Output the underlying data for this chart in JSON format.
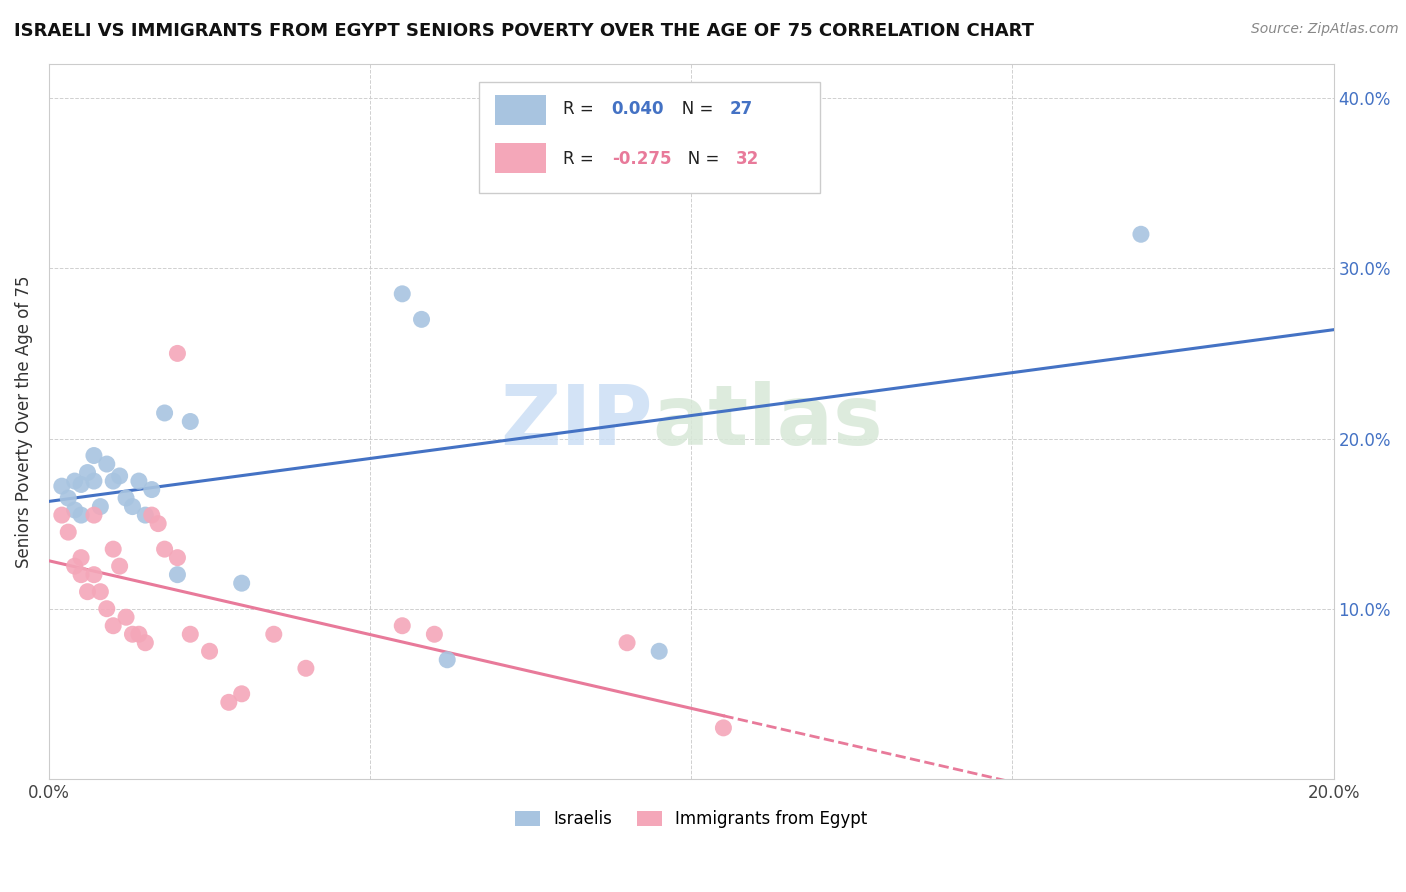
{
  "title": "ISRAELI VS IMMIGRANTS FROM EGYPT SENIORS POVERTY OVER THE AGE OF 75 CORRELATION CHART",
  "source": "Source: ZipAtlas.com",
  "ylabel": "Seniors Poverty Over the Age of 75",
  "xlim": [
    0.0,
    0.2
  ],
  "ylim": [
    0.0,
    0.42
  ],
  "yticks": [
    0.0,
    0.1,
    0.2,
    0.3,
    0.4
  ],
  "xticks": [
    0.0,
    0.05,
    0.1,
    0.15,
    0.2
  ],
  "xtick_labels_show": [
    "0.0%",
    "",
    "",
    "",
    "20.0%"
  ],
  "ytick_labels": [
    "",
    "10.0%",
    "20.0%",
    "30.0%",
    "40.0%"
  ],
  "israelis_color": "#a8c4e0",
  "egypt_color": "#f4a7b9",
  "israelis_line_color": "#4472c4",
  "egypt_line_color": "#e87a9a",
  "legend_label_1": "Israelis",
  "legend_label_2": "Immigrants from Egypt",
  "R1": 0.04,
  "N1": 27,
  "R2": -0.275,
  "N2": 32,
  "israelis_x": [
    0.002,
    0.003,
    0.004,
    0.004,
    0.005,
    0.005,
    0.006,
    0.007,
    0.007,
    0.008,
    0.009,
    0.01,
    0.011,
    0.012,
    0.013,
    0.014,
    0.015,
    0.016,
    0.018,
    0.02,
    0.022,
    0.03,
    0.055,
    0.058,
    0.062,
    0.095,
    0.17
  ],
  "israelis_y": [
    0.172,
    0.165,
    0.158,
    0.175,
    0.155,
    0.173,
    0.18,
    0.175,
    0.19,
    0.16,
    0.185,
    0.175,
    0.178,
    0.165,
    0.16,
    0.175,
    0.155,
    0.17,
    0.215,
    0.12,
    0.21,
    0.115,
    0.285,
    0.27,
    0.07,
    0.075,
    0.32
  ],
  "egypt_x": [
    0.002,
    0.003,
    0.004,
    0.005,
    0.005,
    0.006,
    0.007,
    0.007,
    0.008,
    0.009,
    0.01,
    0.01,
    0.011,
    0.012,
    0.013,
    0.014,
    0.015,
    0.016,
    0.017,
    0.018,
    0.02,
    0.02,
    0.022,
    0.025,
    0.028,
    0.03,
    0.035,
    0.04,
    0.055,
    0.06,
    0.09,
    0.105
  ],
  "egypt_y": [
    0.155,
    0.145,
    0.125,
    0.12,
    0.13,
    0.11,
    0.155,
    0.12,
    0.11,
    0.1,
    0.09,
    0.135,
    0.125,
    0.095,
    0.085,
    0.085,
    0.08,
    0.155,
    0.15,
    0.135,
    0.25,
    0.13,
    0.085,
    0.075,
    0.045,
    0.05,
    0.085,
    0.065,
    0.09,
    0.085,
    0.08,
    0.03
  ],
  "watermark_zip": "ZIP",
  "watermark_atlas": "atlas",
  "background_color": "#ffffff",
  "grid_color": "#d0d0d0"
}
